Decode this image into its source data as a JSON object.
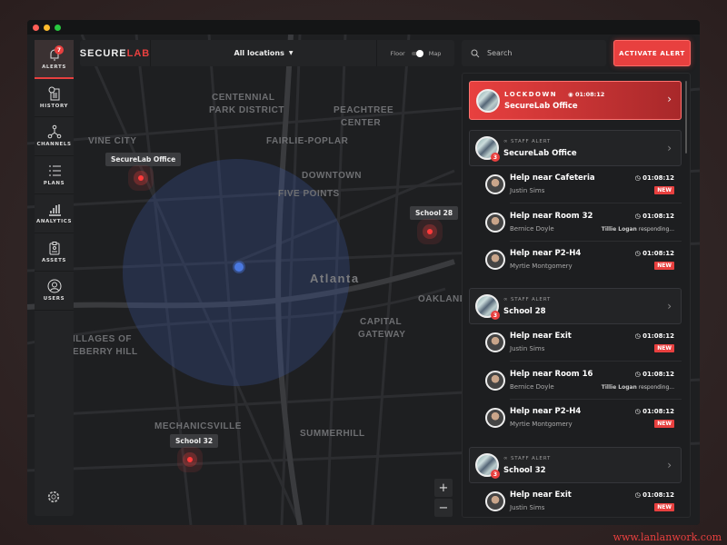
{
  "colors": {
    "accent": "#e8403f",
    "background": "#1c1d1f"
  },
  "brand": {
    "part1": "SECURE",
    "part2": "LAB"
  },
  "topbar": {
    "location": "All locations",
    "toggle_left": "Floor",
    "toggle_right": "Map"
  },
  "search": {
    "placeholder": "Search"
  },
  "activate_label": "ACTIVATE ALERT",
  "sidebar": {
    "items": [
      {
        "label": "ALERTS",
        "icon": "bell-icon",
        "badge": "7"
      },
      {
        "label": "HISTORY",
        "icon": "history-icon"
      },
      {
        "label": "CHANNELS",
        "icon": "channels-icon"
      },
      {
        "label": "PLANS",
        "icon": "list-icon"
      },
      {
        "label": "ANALYTICS",
        "icon": "chart-icon"
      },
      {
        "label": "ASSETS",
        "icon": "clipboard-icon"
      },
      {
        "label": "USERS",
        "icon": "user-icon"
      }
    ],
    "settings_icon": "gear-icon"
  },
  "map": {
    "city": "Atlanta",
    "districts": [
      "CENTENNIAL",
      "PARK DISTRICT",
      "PEACHTREE",
      "CENTER",
      "VINE CITY",
      "FAIRLIE-POPLAR",
      "DOWNTOWN",
      "FIVE POINTS",
      "OAKLAND",
      "CAPITAL",
      "GATEWAY",
      "ILLAGES OF",
      "EBERRY HILL",
      "MECHANICSVILLE",
      "SUMMERHILL"
    ],
    "markers": [
      "SecureLab Office",
      "School 28",
      "School 32"
    ],
    "zoom_in": "+",
    "zoom_out": "−"
  },
  "lockdown": {
    "type": "LOCKDOWN",
    "time": "01:08:12",
    "location": "SecureLab Office"
  },
  "groups": [
    {
      "type": "STAFF ALERT",
      "location": "SecureLab Office",
      "count": "3",
      "items": [
        {
          "title": "Help near Cafeteria",
          "name": "Justin Sims",
          "time": "01:08:12",
          "status": "NEW"
        },
        {
          "title": "Help near Room 32",
          "name": "Bernice Doyle",
          "time": "01:08:12",
          "responder": "Tillie Logan",
          "responding": "responding..."
        },
        {
          "title": "Help near P2-H4",
          "name": "Myrtie Montgomery",
          "time": "01:08:12",
          "status": "NEW"
        }
      ]
    },
    {
      "type": "STAFF ALERT",
      "location": "School 28",
      "count": "3",
      "items": [
        {
          "title": "Help near Exit",
          "name": "Justin Sims",
          "time": "01:08:12",
          "status": "NEW"
        },
        {
          "title": "Help near Room 16",
          "name": "Bernice Doyle",
          "time": "01:08:12",
          "responder": "Tillie Logan",
          "responding": "responding..."
        },
        {
          "title": "Help near P2-H4",
          "name": "Myrtie Montgomery",
          "time": "01:08:12",
          "status": "NEW"
        }
      ]
    },
    {
      "type": "STAFF ALERT",
      "location": "School 32",
      "count": "3",
      "items": [
        {
          "title": "Help near Exit",
          "name": "Justin Sims",
          "time": "01:08:12",
          "status": "NEW"
        }
      ]
    }
  ],
  "watermark": "www.lanlanwork.com"
}
